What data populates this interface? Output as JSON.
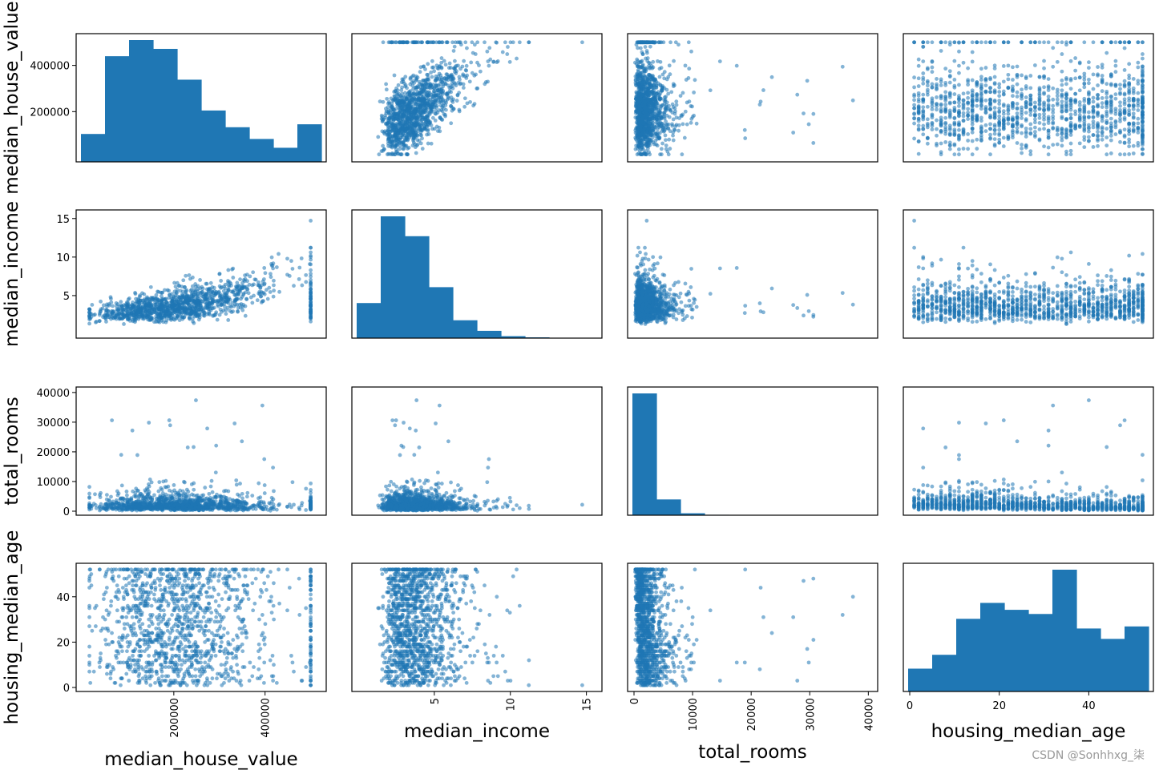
{
  "chart_data": {
    "type": "scatter",
    "kind": "scatter-matrix",
    "variables": [
      "median_house_value",
      "median_income",
      "total_rooms",
      "housing_median_age"
    ],
    "diagonal": "hist",
    "colors": {
      "marks": "#1f77b4",
      "frame": "#000000",
      "watermark": "#9a9a9a"
    },
    "ranges": {
      "median_house_value": [
        0,
        520000
      ],
      "median_income": [
        0,
        15.6
      ],
      "total_rooms": [
        0,
        40500
      ],
      "housing_median_age": [
        0,
        53
      ]
    },
    "ticks": {
      "median_house_value": [
        {
          "value": 200000,
          "label": "200000"
        },
        {
          "value": 400000,
          "label": "400000"
        }
      ],
      "median_income": [
        {
          "value": 5,
          "label": "5"
        },
        {
          "value": 10,
          "label": "10"
        },
        {
          "value": 15,
          "label": "15"
        }
      ],
      "total_rooms": [
        {
          "value": 0,
          "label": "0"
        },
        {
          "value": 10000,
          "label": "10000"
        },
        {
          "value": 20000,
          "label": "20000"
        },
        {
          "value": 30000,
          "label": "30000"
        },
        {
          "value": 40000,
          "label": "40000"
        }
      ],
      "housing_median_age": [
        {
          "value": 0,
          "label": "0"
        },
        {
          "value": 20,
          "label": "20"
        },
        {
          "value": 40,
          "label": "40"
        }
      ]
    },
    "histograms": {
      "median_house_value": {
        "bin_edges": [
          14999,
          63499,
          111999,
          160499,
          208999,
          257499,
          305999,
          354499,
          402999,
          451499,
          500001
        ],
        "counts": [
          95,
          360,
          415,
          385,
          280,
          175,
          118,
          78,
          48,
          128
        ]
      },
      "median_income": {
        "bin_edges": [
          0.5,
          1.95,
          3.4,
          4.85,
          6.3,
          7.75,
          9.2,
          10.65,
          12.1,
          13.55,
          15.0
        ],
        "counts": [
          265,
          920,
          770,
          385,
          135,
          55,
          15,
          6,
          3,
          2
        ]
      },
      "total_rooms": {
        "bin_edges": [
          2,
          3934,
          7866,
          11798,
          15730,
          19662,
          23594,
          27526,
          31458,
          35390,
          39320
        ],
        "counts": [
          1120,
          145,
          18,
          4,
          1,
          0,
          0,
          0,
          0,
          0
        ]
      },
      "housing_median_age": {
        "bin_edges": [
          1,
          6.1,
          11.2,
          16.3,
          21.4,
          26.5,
          31.6,
          36.7,
          41.8,
          46.9,
          52
        ],
        "counts": [
          165,
          265,
          525,
          640,
          590,
          560,
          880,
          455,
          380,
          470
        ]
      }
    },
    "xlabel_row": [
      "median_house_value",
      "median_income",
      "total_rooms",
      "housing_median_age"
    ],
    "ylabel_col": [
      "median_house_value",
      "median_income",
      "total_rooms",
      "housing_median_age"
    ]
  },
  "watermark": "CSDN @Sonhhxg_柒"
}
